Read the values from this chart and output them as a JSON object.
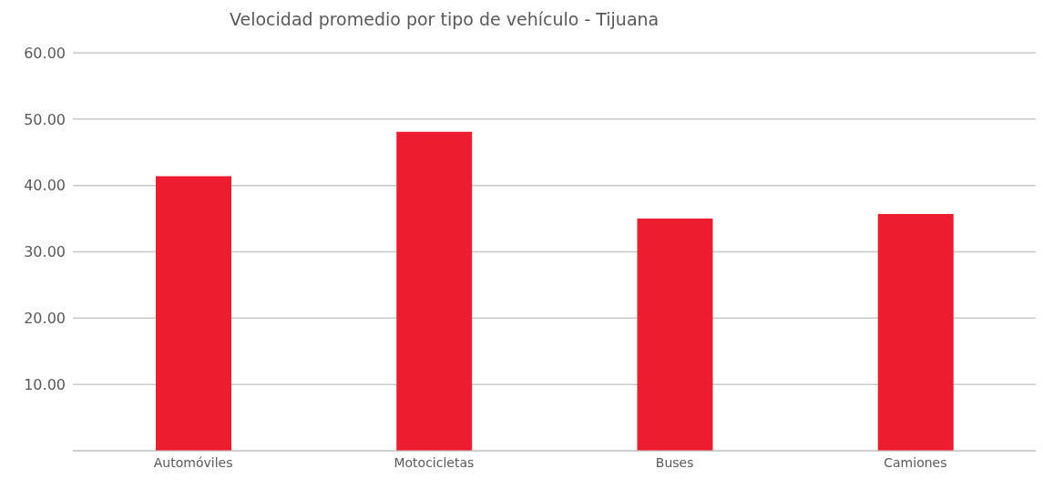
{
  "chart_data": {
    "type": "bar",
    "title": "Velocidad promedio por tipo de vehículo - Tijuana",
    "categories": [
      "Automóviles",
      "Motocicletas",
      "Buses",
      "Camiones"
    ],
    "values": [
      41.4,
      48.1,
      35.0,
      35.7
    ],
    "color": "#ed1c2e",
    "ylim": [
      0,
      60
    ],
    "yticks": [
      {
        "value": 0,
        "label": null
      },
      {
        "value": 10,
        "label": "10.00"
      },
      {
        "value": 20,
        "label": "20.00"
      },
      {
        "value": 30,
        "label": "30.00"
      },
      {
        "value": 40,
        "label": "40.00"
      },
      {
        "value": 50,
        "label": "50.00"
      },
      {
        "value": 60,
        "label": "60.00"
      }
    ],
    "grid": "y"
  }
}
